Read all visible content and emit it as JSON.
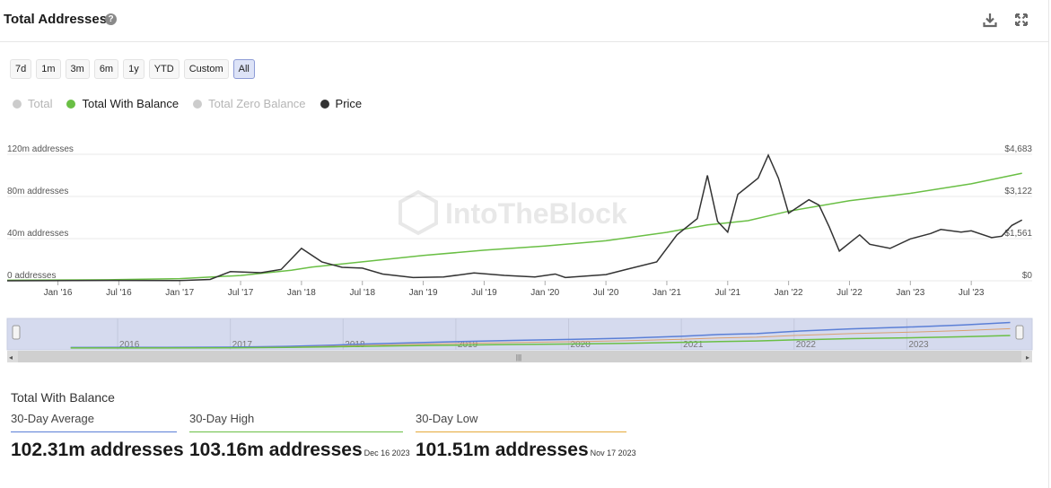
{
  "header": {
    "title": "Total Addresses",
    "help_icon": "question-circle-icon",
    "download_icon": "download-icon",
    "expand_icon": "expand-icon"
  },
  "ranges": [
    "7d",
    "1m",
    "3m",
    "6m",
    "1y",
    "YTD",
    "Custom",
    "All"
  ],
  "active_range": "All",
  "legend": [
    {
      "label": "Total",
      "color": "#cccccc",
      "active": false
    },
    {
      "label": "Total With Balance",
      "color": "#6abf45",
      "active": true
    },
    {
      "label": "Total Zero Balance",
      "color": "#cccccc",
      "active": false
    },
    {
      "label": "Price",
      "color": "#333333",
      "active": true
    }
  ],
  "watermark": "IntoTheBlock",
  "chart_data": {
    "type": "line",
    "x_tick_labels": [
      "Jan '16",
      "Jul '16",
      "Jan '17",
      "Jul '17",
      "Jan '18",
      "Jul '18",
      "Jan '19",
      "Jul '19",
      "Jan '20",
      "Jul '20",
      "Jan '21",
      "Jul '21",
      "Jan '22",
      "Jul '22",
      "Jan '23",
      "Jul '23"
    ],
    "y_left_ticks": [
      "0 addresses",
      "40m addresses",
      "80m addresses",
      "120m addresses"
    ],
    "y_right_ticks": [
      "$0",
      "$1,561",
      "$3,122",
      "$4,683"
    ],
    "y_left_range": [
      0,
      120
    ],
    "y_right_range": [
      0,
      4683
    ],
    "series": [
      {
        "name": "Total With Balance",
        "unit": "m addresses",
        "color": "#6abf45",
        "points": [
          [
            "2015-08",
            0.5
          ],
          [
            "2016-06",
            1
          ],
          [
            "2017-01",
            2
          ],
          [
            "2017-07",
            5
          ],
          [
            "2017-12",
            10
          ],
          [
            "2018-02",
            13
          ],
          [
            "2018-07",
            18
          ],
          [
            "2019-01",
            24
          ],
          [
            "2019-07",
            29
          ],
          [
            "2020-01",
            33
          ],
          [
            "2020-07",
            38
          ],
          [
            "2021-01",
            46
          ],
          [
            "2021-05",
            53
          ],
          [
            "2021-09",
            57
          ],
          [
            "2022-01",
            66
          ],
          [
            "2022-07",
            76
          ],
          [
            "2023-01",
            83
          ],
          [
            "2023-07",
            92
          ],
          [
            "2023-12",
            102
          ]
        ]
      },
      {
        "name": "Price",
        "unit": "$",
        "color": "#333333",
        "points": [
          [
            "2015-08",
            1
          ],
          [
            "2016-06",
            12
          ],
          [
            "2017-01",
            10
          ],
          [
            "2017-04",
            50
          ],
          [
            "2017-06",
            340
          ],
          [
            "2017-09",
            300
          ],
          [
            "2017-11",
            420
          ],
          [
            "2018-01",
            1200
          ],
          [
            "2018-03",
            700
          ],
          [
            "2018-05",
            500
          ],
          [
            "2018-07",
            470
          ],
          [
            "2018-09",
            250
          ],
          [
            "2018-12",
            120
          ],
          [
            "2019-03",
            140
          ],
          [
            "2019-06",
            290
          ],
          [
            "2019-09",
            200
          ],
          [
            "2019-12",
            140
          ],
          [
            "2020-02",
            250
          ],
          [
            "2020-03",
            120
          ],
          [
            "2020-07",
            230
          ],
          [
            "2020-09",
            420
          ],
          [
            "2020-12",
            700
          ],
          [
            "2021-02",
            1700
          ],
          [
            "2021-04",
            2300
          ],
          [
            "2021-05",
            3900
          ],
          [
            "2021-06",
            2200
          ],
          [
            "2021-07",
            1800
          ],
          [
            "2021-08",
            3200
          ],
          [
            "2021-09",
            3500
          ],
          [
            "2021-10",
            3800
          ],
          [
            "2021-11",
            4650
          ],
          [
            "2021-12",
            3800
          ],
          [
            "2022-01",
            2500
          ],
          [
            "2022-03",
            3000
          ],
          [
            "2022-04",
            2800
          ],
          [
            "2022-05",
            2000
          ],
          [
            "2022-06",
            1100
          ],
          [
            "2022-08",
            1700
          ],
          [
            "2022-09",
            1350
          ],
          [
            "2022-11",
            1200
          ],
          [
            "2023-01",
            1550
          ],
          [
            "2023-03",
            1750
          ],
          [
            "2023-04",
            1900
          ],
          [
            "2023-06",
            1800
          ],
          [
            "2023-07",
            1850
          ],
          [
            "2023-09",
            1600
          ],
          [
            "2023-10",
            1650
          ],
          [
            "2023-11",
            2050
          ],
          [
            "2023-12",
            2250
          ]
        ]
      }
    ],
    "navigator": {
      "year_labels": [
        "2016",
        "2017",
        "2018",
        "2019",
        "2020",
        "2021",
        "2022",
        "2023"
      ]
    }
  },
  "stats": {
    "title": "Total With Balance",
    "items": [
      {
        "label": "30-Day Average",
        "value": "102.31m addresses",
        "date": "",
        "color": "#5b7fd6"
      },
      {
        "label": "30-Day High",
        "value": "103.16m addresses",
        "date": "Dec 16 2023",
        "color": "#6abf45"
      },
      {
        "label": "30-Day Low",
        "value": "101.51m addresses",
        "date": "Nov 17 2023",
        "color": "#e6a93a"
      }
    ]
  }
}
